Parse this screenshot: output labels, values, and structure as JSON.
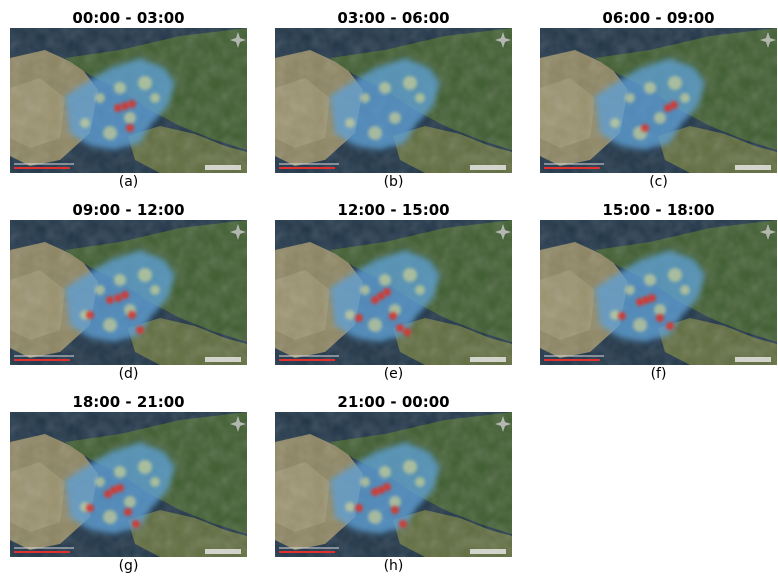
{
  "panels": [
    {
      "title": "00:00 - 03:00",
      "label": "(a)"
    },
    {
      "title": "03:00 - 06:00",
      "label": "(b)"
    },
    {
      "title": "06:00 - 09:00",
      "label": "(c)"
    },
    {
      "title": "09:00 - 12:00",
      "label": "(d)"
    },
    {
      "title": "12:00 - 15:00",
      "label": "(e)"
    },
    {
      "title": "15:00 - 18:00",
      "label": "(f)"
    },
    {
      "title": "18:00 - 21:00",
      "label": "(g)"
    },
    {
      "title": "21:00 - 00:00",
      "label": "(h)"
    }
  ]
}
